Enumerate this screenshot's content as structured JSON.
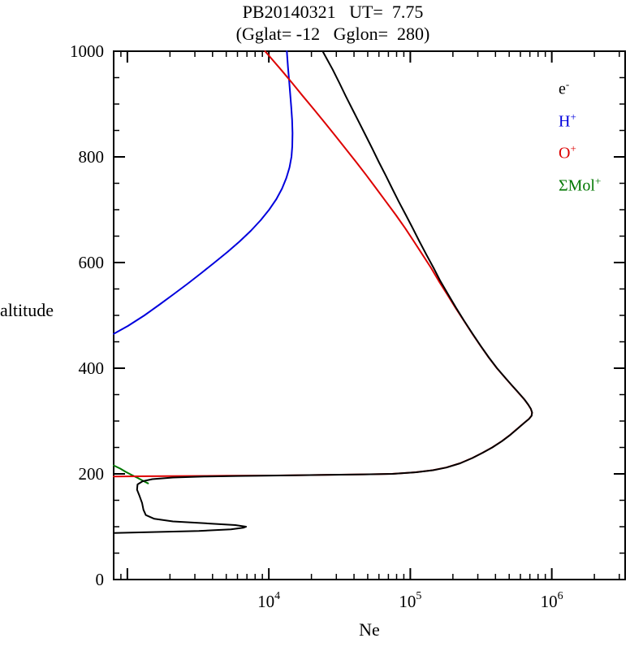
{
  "chart_data": {
    "type": "line",
    "title": "PB20140321   UT=  7.75",
    "subtitle": "(Gglat= -12   Gglon=  280)",
    "xlabel": "Ne",
    "ylabel": "altitude",
    "x_scale": "log",
    "xlim": [
      800,
      3300000
    ],
    "ylim": [
      0,
      1000
    ],
    "y_major_ticks": [
      0,
      200,
      400,
      600,
      800,
      1000
    ],
    "y_minor_step": 50,
    "x_labeled_decades": [
      4,
      5,
      6
    ],
    "grid": false,
    "legend_position": "top-right-inside",
    "legend": [
      {
        "base": "e",
        "sup": "-",
        "color": "#000000",
        "key": "e"
      },
      {
        "base": "H",
        "sup": "+",
        "color": "#0000dd",
        "key": "h"
      },
      {
        "base": "O",
        "sup": "+",
        "color": "#dd0000",
        "key": "o"
      },
      {
        "base": "ΣMol",
        "sup": "+",
        "color": "#007700",
        "key": "mol"
      }
    ],
    "series": [
      {
        "name": "SMol+",
        "color": "#007700",
        "points": [
          [
            216,
            800
          ],
          [
            210,
            890
          ],
          [
            204,
            970
          ],
          [
            198,
            1070
          ],
          [
            192,
            1190
          ],
          [
            186,
            1310
          ],
          [
            182,
            1400
          ]
        ]
      },
      {
        "name": "H+",
        "color": "#0000dd",
        "points": [
          [
            465,
            800
          ],
          [
            480,
            1010
          ],
          [
            500,
            1320
          ],
          [
            520,
            1680
          ],
          [
            540,
            2120
          ],
          [
            560,
            2670
          ],
          [
            580,
            3330
          ],
          [
            600,
            4130
          ],
          [
            620,
            5100
          ],
          [
            640,
            6220
          ],
          [
            660,
            7450
          ],
          [
            680,
            8750
          ],
          [
            700,
            10050
          ],
          [
            720,
            11300
          ],
          [
            740,
            12400
          ],
          [
            760,
            13300
          ],
          [
            780,
            14000
          ],
          [
            800,
            14450
          ],
          [
            820,
            14650
          ],
          [
            845,
            14700
          ],
          [
            870,
            14600
          ],
          [
            895,
            14400
          ],
          [
            920,
            14150
          ],
          [
            945,
            13900
          ],
          [
            970,
            13650
          ],
          [
            1000,
            13400
          ]
        ]
      },
      {
        "name": "O+",
        "color": "#dd0000",
        "points": [
          [
            195,
            800
          ],
          [
            195.5,
            1400
          ],
          [
            196,
            2600
          ],
          [
            196.5,
            5000
          ],
          [
            197,
            11000
          ],
          [
            198,
            24000
          ],
          [
            199,
            47000
          ],
          [
            200,
            74000
          ],
          [
            203,
            109000
          ],
          [
            207,
            144000
          ],
          [
            212,
            179000
          ],
          [
            220,
            224000
          ],
          [
            230,
            274000
          ],
          [
            240,
            324000
          ],
          [
            250,
            379000
          ],
          [
            262,
            444000
          ],
          [
            274,
            509000
          ],
          [
            286,
            574000
          ],
          [
            296,
            634000
          ],
          [
            304,
            689000
          ],
          [
            310,
            719000
          ],
          [
            316,
            725000
          ],
          [
            323,
            711000
          ],
          [
            331,
            681000
          ],
          [
            341,
            639000
          ],
          [
            353,
            584000
          ],
          [
            367,
            524000
          ],
          [
            383,
            464000
          ],
          [
            400,
            409000
          ],
          [
            420,
            359000
          ],
          [
            442,
            314000
          ],
          [
            465,
            275000
          ],
          [
            490,
            239000
          ],
          [
            515,
            208000
          ],
          [
            540,
            182000
          ],
          [
            565,
            159000
          ],
          [
            590,
            140000
          ],
          [
            615,
            122000
          ],
          [
            640,
            106000
          ],
          [
            665,
            92000
          ],
          [
            690,
            79000
          ],
          [
            715,
            67500
          ],
          [
            740,
            57500
          ],
          [
            765,
            49000
          ],
          [
            790,
            41500
          ],
          [
            815,
            35000
          ],
          [
            840,
            29500
          ],
          [
            865,
            24800
          ],
          [
            890,
            20800
          ],
          [
            915,
            17400
          ],
          [
            940,
            14600
          ],
          [
            965,
            12200
          ],
          [
            1000,
            9400
          ]
        ]
      },
      {
        "name": "e-",
        "color": "#000000",
        "points": [
          [
            88,
            800
          ],
          [
            90,
            1600
          ],
          [
            92,
            3200
          ],
          [
            95,
            5400
          ],
          [
            98,
            6600
          ],
          [
            100,
            6900
          ],
          [
            103,
            5800
          ],
          [
            106,
            3800
          ],
          [
            110,
            2100
          ],
          [
            115,
            1550
          ],
          [
            122,
            1350
          ],
          [
            132,
            1300
          ],
          [
            145,
            1270
          ],
          [
            158,
            1220
          ],
          [
            170,
            1170
          ],
          [
            180,
            1180
          ],
          [
            186,
            1280
          ],
          [
            190,
            1500
          ],
          [
            193,
            2100
          ],
          [
            195,
            3500
          ],
          [
            196,
            6000
          ],
          [
            197,
            12000
          ],
          [
            198,
            25000
          ],
          [
            199,
            48000
          ],
          [
            200,
            75000
          ],
          [
            203,
            110000
          ],
          [
            207,
            145000
          ],
          [
            212,
            180000
          ],
          [
            220,
            225000
          ],
          [
            230,
            275000
          ],
          [
            240,
            325000
          ],
          [
            250,
            380000
          ],
          [
            262,
            445000
          ],
          [
            274,
            510000
          ],
          [
            286,
            575000
          ],
          [
            296,
            635000
          ],
          [
            304,
            690000
          ],
          [
            310,
            720000
          ],
          [
            316,
            726000
          ],
          [
            323,
            712000
          ],
          [
            331,
            682000
          ],
          [
            341,
            640000
          ],
          [
            353,
            585000
          ],
          [
            367,
            525000
          ],
          [
            383,
            465000
          ],
          [
            400,
            410000
          ],
          [
            420,
            360000
          ],
          [
            442,
            315000
          ],
          [
            465,
            276000
          ],
          [
            490,
            240000
          ],
          [
            515,
            210000
          ],
          [
            540,
            185000
          ],
          [
            565,
            163000
          ],
          [
            590,
            146000
          ],
          [
            615,
            130000
          ],
          [
            640,
            116000
          ],
          [
            665,
            104000
          ],
          [
            690,
            93000
          ],
          [
            715,
            83000
          ],
          [
            740,
            74500
          ],
          [
            765,
            67000
          ],
          [
            790,
            60000
          ],
          [
            815,
            54000
          ],
          [
            840,
            48500
          ],
          [
            865,
            43500
          ],
          [
            890,
            39000
          ],
          [
            915,
            35000
          ],
          [
            940,
            31500
          ],
          [
            965,
            28300
          ],
          [
            1000,
            24000
          ]
        ]
      }
    ]
  }
}
